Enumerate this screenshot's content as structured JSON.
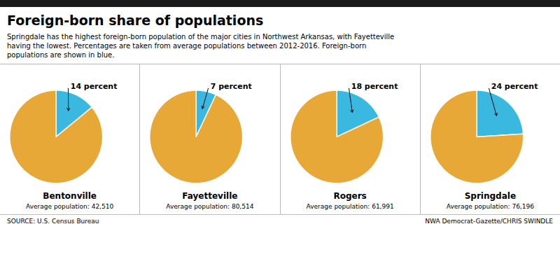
{
  "title": "Foreign-born share of populations",
  "subtitle": [
    "Springdale has the highest foreign-born population of the major cities in Northwest Arkansas, with Fayetteville",
    "having the lowest. Percentages are taken from average populations between 2012-2016. Foreign-born",
    "populations are shown in blue."
  ],
  "source": [
    "SOURCE: U.S. Census Bureau",
    "NWA Democrat-Gazette/CHRIS SWINDLE"
  ],
  "chart_data": [
    {
      "type": "pie",
      "title": "Bentonville",
      "subtitle": "Average population: 42,510",
      "values": [
        14,
        86
      ],
      "colors": [
        "#3BB8E0",
        "#E8A838"
      ],
      "data_labels": true,
      "value_labels": [
        "14 percent",
        null
      ]
    },
    {
      "type": "pie",
      "title": "Fayetteville",
      "subtitle": "Average population: 80,514",
      "values": [
        7,
        93
      ],
      "colors": [
        "#3BB8E0",
        "#E8A838"
      ],
      "data_labels": true,
      "value_labels": [
        "7 percent",
        null
      ]
    },
    {
      "type": "pie",
      "title": "Rogers",
      "subtitle": "Average population: 61,991",
      "values": [
        18,
        82
      ],
      "colors": [
        "#3BB8E0",
        "#E8A838"
      ],
      "data_labels": true,
      "value_labels": [
        "18 percent",
        null
      ]
    },
    {
      "type": "pie",
      "title": "Springdale",
      "subtitle": "Average population: 76,196",
      "values": [
        24,
        76
      ],
      "colors": [
        "#3BB8E0",
        "#E8A838"
      ],
      "data_labels": true,
      "value_labels": [
        "24 percent",
        null
      ]
    }
  ]
}
